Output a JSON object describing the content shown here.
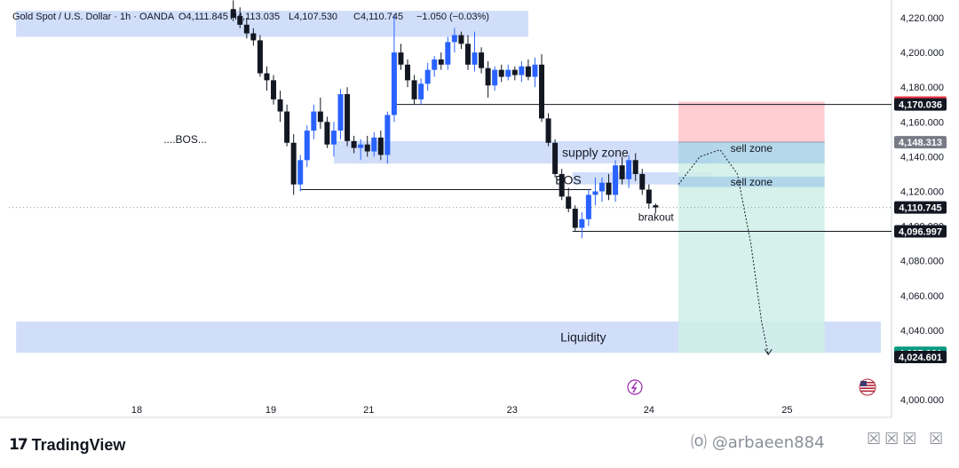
{
  "header": {
    "symbol": "Gold Spot / U.S. Dollar · 1h · OANDA",
    "open": "O4,111.845",
    "high": "H4,113.035",
    "low": "L4,107.530",
    "close": "C4,110.745",
    "change": "−1.050 (−0.03%)"
  },
  "chart_data": {
    "type": "candlestick",
    "title": "Gold Spot / U.S. Dollar · 1h · OANDA",
    "ylim": [
      3996,
      4226
    ],
    "yticks": [
      "4,220.000",
      "4,200.000",
      "4,180.000",
      "4,160.000",
      "4,140.000",
      "4,120.000",
      "4,100.000",
      "4,080.000",
      "4,060.000",
      "4,040.000",
      "4,000.000"
    ],
    "ytick_values": [
      4220,
      4200,
      4180,
      4160,
      4140,
      4120,
      4100,
      4080,
      4060,
      4040,
      4000
    ],
    "xtick_labels": [
      "18",
      "19",
      "21",
      "23",
      "24",
      "25"
    ],
    "xtick_values": [
      0,
      10,
      17.3,
      28,
      38.2,
      48.5
    ],
    "candles": [
      {
        "x": 7.2,
        "o": 4225,
        "h": 4230,
        "l": 4218,
        "c": 4220
      },
      {
        "x": 7.7,
        "o": 4221,
        "h": 4226,
        "l": 4214,
        "c": 4216
      },
      {
        "x": 8.2,
        "o": 4216,
        "h": 4220,
        "l": 4208,
        "c": 4211
      },
      {
        "x": 8.7,
        "o": 4211,
        "h": 4214,
        "l": 4204,
        "c": 4207
      },
      {
        "x": 9.2,
        "o": 4207,
        "h": 4210,
        "l": 4186,
        "c": 4188
      },
      {
        "x": 9.7,
        "o": 4188,
        "h": 4192,
        "l": 4178,
        "c": 4184
      },
      {
        "x": 10.2,
        "o": 4184,
        "h": 4187,
        "l": 4170,
        "c": 4173
      },
      {
        "x": 10.7,
        "o": 4173,
        "h": 4178,
        "l": 4160,
        "c": 4166
      },
      {
        "x": 11.2,
        "o": 4166,
        "h": 4170,
        "l": 4146,
        "c": 4148
      },
      {
        "x": 11.7,
        "o": 4148,
        "h": 4153,
        "l": 4118,
        "c": 4124
      },
      {
        "x": 12.2,
        "o": 4124,
        "h": 4141,
        "l": 4120,
        "c": 4138
      },
      {
        "x": 12.7,
        "o": 4138,
        "h": 4158,
        "l": 4134,
        "c": 4155
      },
      {
        "x": 13.2,
        "o": 4155,
        "h": 4170,
        "l": 4150,
        "c": 4166
      },
      {
        "x": 13.7,
        "o": 4166,
        "h": 4174,
        "l": 4156,
        "c": 4160
      },
      {
        "x": 14.2,
        "o": 4160,
        "h": 4163,
        "l": 4145,
        "c": 4147
      },
      {
        "x": 14.7,
        "o": 4147,
        "h": 4160,
        "l": 4140,
        "c": 4155
      },
      {
        "x": 15.2,
        "o": 4155,
        "h": 4179,
        "l": 4150,
        "c": 4176
      },
      {
        "x": 15.7,
        "o": 4176,
        "h": 4180,
        "l": 4146,
        "c": 4149
      },
      {
        "x": 16.2,
        "o": 4149,
        "h": 4152,
        "l": 4142,
        "c": 4145
      },
      {
        "x": 16.7,
        "o": 4145,
        "h": 4150,
        "l": 4138,
        "c": 4147
      },
      {
        "x": 17.2,
        "o": 4147,
        "h": 4152,
        "l": 4140,
        "c": 4143
      },
      {
        "x": 17.7,
        "o": 4143,
        "h": 4154,
        "l": 4140,
        "c": 4151
      },
      {
        "x": 18.2,
        "o": 4151,
        "h": 4155,
        "l": 4138,
        "c": 4141
      },
      {
        "x": 18.7,
        "o": 4141,
        "h": 4166,
        "l": 4136,
        "c": 4164
      },
      {
        "x": 19.2,
        "o": 4164,
        "h": 4222,
        "l": 4160,
        "c": 4200
      },
      {
        "x": 19.7,
        "o": 4200,
        "h": 4205,
        "l": 4190,
        "c": 4193
      },
      {
        "x": 20.2,
        "o": 4193,
        "h": 4196,
        "l": 4180,
        "c": 4184
      },
      {
        "x": 20.7,
        "o": 4184,
        "h": 4187,
        "l": 4170,
        "c": 4173
      },
      {
        "x": 21.2,
        "o": 4173,
        "h": 4185,
        "l": 4170,
        "c": 4182
      },
      {
        "x": 21.7,
        "o": 4182,
        "h": 4194,
        "l": 4178,
        "c": 4190
      },
      {
        "x": 22.2,
        "o": 4190,
        "h": 4198,
        "l": 4186,
        "c": 4196
      },
      {
        "x": 22.7,
        "o": 4196,
        "h": 4200,
        "l": 4190,
        "c": 4193
      },
      {
        "x": 23.2,
        "o": 4193,
        "h": 4209,
        "l": 4190,
        "c": 4206
      },
      {
        "x": 23.7,
        "o": 4206,
        "h": 4214,
        "l": 4200,
        "c": 4210
      },
      {
        "x": 24.2,
        "o": 4210,
        "h": 4212,
        "l": 4202,
        "c": 4205
      },
      {
        "x": 24.7,
        "o": 4205,
        "h": 4210,
        "l": 4190,
        "c": 4193
      },
      {
        "x": 25.2,
        "o": 4193,
        "h": 4212,
        "l": 4189,
        "c": 4200
      },
      {
        "x": 25.7,
        "o": 4200,
        "h": 4203,
        "l": 4188,
        "c": 4191
      },
      {
        "x": 26.2,
        "o": 4191,
        "h": 4195,
        "l": 4174,
        "c": 4181
      },
      {
        "x": 26.7,
        "o": 4181,
        "h": 4192,
        "l": 4178,
        "c": 4190
      },
      {
        "x": 27.2,
        "o": 4190,
        "h": 4193,
        "l": 4183,
        "c": 4186
      },
      {
        "x": 27.7,
        "o": 4186,
        "h": 4193,
        "l": 4184,
        "c": 4190
      },
      {
        "x": 28.2,
        "o": 4190,
        "h": 4192,
        "l": 4184,
        "c": 4187
      },
      {
        "x": 28.7,
        "o": 4187,
        "h": 4195,
        "l": 4183,
        "c": 4192
      },
      {
        "x": 29.2,
        "o": 4192,
        "h": 4196,
        "l": 4184,
        "c": 4186
      },
      {
        "x": 29.7,
        "o": 4186,
        "h": 4197,
        "l": 4180,
        "c": 4193
      },
      {
        "x": 30.2,
        "o": 4193,
        "h": 4199,
        "l": 4160,
        "c": 4162
      },
      {
        "x": 30.7,
        "o": 4162,
        "h": 4165,
        "l": 4146,
        "c": 4148
      },
      {
        "x": 31.2,
        "o": 4148,
        "h": 4150,
        "l": 4128,
        "c": 4130
      },
      {
        "x": 31.7,
        "o": 4130,
        "h": 4133,
        "l": 4115,
        "c": 4117
      },
      {
        "x": 32.2,
        "o": 4117,
        "h": 4122,
        "l": 4108,
        "c": 4110
      },
      {
        "x": 32.7,
        "o": 4110,
        "h": 4112,
        "l": 4097,
        "c": 4099
      },
      {
        "x": 33.2,
        "o": 4099,
        "h": 4108,
        "l": 4093,
        "c": 4104
      },
      {
        "x": 33.7,
        "o": 4104,
        "h": 4121,
        "l": 4100,
        "c": 4118
      },
      {
        "x": 34.2,
        "o": 4118,
        "h": 4128,
        "l": 4112,
        "c": 4120
      },
      {
        "x": 34.7,
        "o": 4120,
        "h": 4128,
        "l": 4114,
        "c": 4125
      },
      {
        "x": 35.2,
        "o": 4125,
        "h": 4130,
        "l": 4115,
        "c": 4118
      },
      {
        "x": 35.7,
        "o": 4118,
        "h": 4138,
        "l": 4114,
        "c": 4135
      },
      {
        "x": 36.2,
        "o": 4135,
        "h": 4140,
        "l": 4124,
        "c": 4127
      },
      {
        "x": 36.7,
        "o": 4127,
        "h": 4141,
        "l": 4122,
        "c": 4138
      },
      {
        "x": 37.2,
        "o": 4138,
        "h": 4142,
        "l": 4126,
        "c": 4130
      },
      {
        "x": 37.7,
        "o": 4130,
        "h": 4133,
        "l": 4118,
        "c": 4121
      },
      {
        "x": 38.2,
        "o": 4121,
        "h": 4124,
        "l": 4110,
        "c": 4113
      },
      {
        "x": 38.7,
        "o": 4112,
        "h": 4113,
        "l": 4107.5,
        "c": 4110.745
      }
    ],
    "hlines": [
      {
        "y": 4170.036,
        "x_from": 19.2
      },
      {
        "y": 4121,
        "x_from": 12.2,
        "x_to": 33.9
      },
      {
        "y": 4096.997,
        "x_from": 32.5
      }
    ],
    "zones": [
      {
        "label": "",
        "y0": 4209,
        "y1": 4224,
        "x0": -9,
        "x1": 29.2,
        "color": "#cfdcfa"
      },
      {
        "label": "supply zone",
        "y0": 4136,
        "y1": 4149,
        "x0": 14.7,
        "x1": 43.0,
        "color": "#cfdcfa"
      },
      {
        "label": "",
        "y0": 4124,
        "y1": 4131,
        "x0": 32.5,
        "x1": 43.0,
        "color": "#cfdcfa"
      },
      {
        "label": "Liquidity",
        "y0": 4027.021,
        "y1": 4045,
        "x0": -9,
        "x1": 55.5,
        "color": "#cfdcfa"
      }
    ],
    "position": {
      "x0": 40.4,
      "x1": 51.3,
      "stop": 4171.172,
      "entry": 4148.313,
      "target": 4027.021,
      "sell_zone_label": "sell zone",
      "sell_zone_2": {
        "y0": 4122.5,
        "y1": 4128.5,
        "label": "sell zone"
      }
    },
    "price_labels": [
      {
        "value": "4,171.172",
        "y": 4171.172,
        "color": "#f23645"
      },
      {
        "value": "4,170.036",
        "y": 4170.036,
        "color": "#131722"
      },
      {
        "value": "4,148.313",
        "y": 4148.313,
        "color": "#787b86"
      },
      {
        "value": "4,110.745",
        "y": 4110.745,
        "color": "#131722"
      },
      {
        "value": "4,096.997",
        "y": 4096.997,
        "color": "#131722"
      },
      {
        "value": "4,027.021",
        "y": 4027.021,
        "color": "#089981"
      },
      {
        "value": "4,024.601",
        "y": 4024.601,
        "color": "#131722"
      }
    ],
    "annotations": [
      {
        "text": "....BOS...",
        "x": 2,
        "y": 4148
      },
      {
        "text": "BOS",
        "x": 31.2,
        "y": 4124
      },
      {
        "text": "brakout",
        "x": 37.4,
        "y": 4103
      }
    ],
    "forecast_path": [
      [
        40.4,
        4124
      ],
      [
        42,
        4140
      ],
      [
        43.5,
        4144
      ],
      [
        44.8,
        4130
      ],
      [
        45.8,
        4090
      ],
      [
        46.6,
        4045
      ],
      [
        47.1,
        4026
      ]
    ],
    "colors": {
      "up": "#2962ff",
      "down": "#131722",
      "stop_zone": "#ffcdd2",
      "target_zone": "#cfeee6",
      "grid": "#f0f3fa"
    }
  },
  "footer": {
    "brand": "TradingView",
    "watermark": "⒪ @arbaeen884",
    "watermark_glyphs": "☒☒☒ ☒"
  },
  "icons": {
    "event_flash": "flash-icon",
    "country_flag": "us-flag-icon"
  }
}
